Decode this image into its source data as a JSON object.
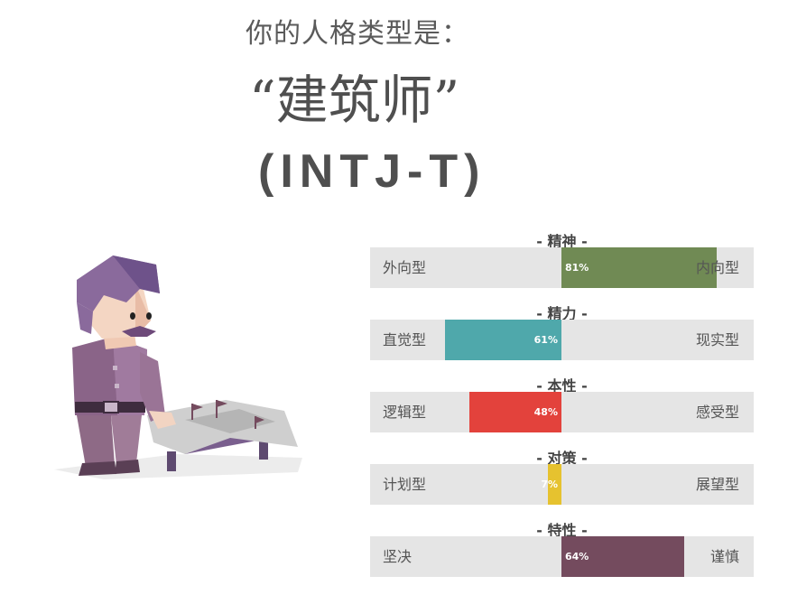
{
  "header": {
    "subtitle": "你的人格类型是：",
    "type_name": "“建筑师”",
    "type_code": "(INTJ-T)"
  },
  "illustration": {
    "icon": "architect-character-icon"
  },
  "traits": [
    {
      "title": "- 精神 -",
      "left": "外向型",
      "right": "内向型",
      "percent_label": "81%",
      "percent": 81,
      "side": "right",
      "color": "#708a54"
    },
    {
      "title": "- 精力 -",
      "left": "直觉型",
      "right": "现实型",
      "percent_label": "61%",
      "percent": 61,
      "side": "left",
      "color": "#4fa8ab"
    },
    {
      "title": "- 本性 -",
      "left": "逻辑型",
      "right": "感受型",
      "percent_label": "48%",
      "percent": 48,
      "side": "left",
      "color": "#e3423c"
    },
    {
      "title": "- 对策 -",
      "left": "计划型",
      "right": "展望型",
      "percent_label": "7%",
      "percent": 7,
      "side": "left",
      "color": "#e6c22f"
    },
    {
      "title": "- 特性 -",
      "left": "坚决",
      "right": "谨慎",
      "percent_label": "64%",
      "percent": 64,
      "side": "right",
      "color": "#744b5e"
    }
  ]
}
